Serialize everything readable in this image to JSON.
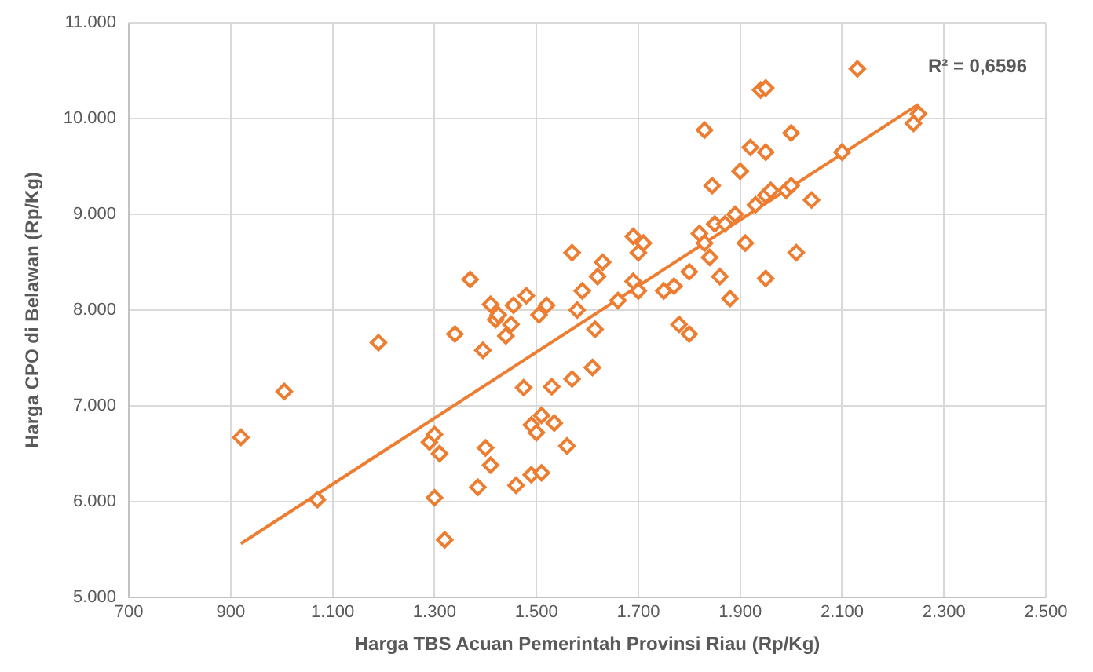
{
  "chart_data": {
    "type": "scatter",
    "xlabel": "Harga TBS Acuan Pemerintah Provinsi Riau (Rp/Kg)",
    "ylabel": "Harga CPO di Belawan (Rp/Kg)",
    "xlim": [
      700,
      2500
    ],
    "xticks": [
      700,
      900,
      {
        "value": 1100,
        "label": "1.100"
      },
      {
        "value": 1300,
        "label": "1.300"
      },
      {
        "value": 1500,
        "label": "1.500"
      },
      {
        "value": 1700,
        "label": "1.700"
      },
      {
        "value": 1900,
        "label": "1.900"
      },
      {
        "value": 2100,
        "label": "2.100"
      },
      {
        "value": 2300,
        "label": "2.300"
      },
      {
        "value": 2500,
        "label": "2.500"
      }
    ],
    "ylim": [
      5000,
      11000
    ],
    "yticks": [
      {
        "value": 5000,
        "label": "5.000"
      },
      {
        "value": 6000,
        "label": "6.000"
      },
      {
        "value": 7000,
        "label": "7.000"
      },
      {
        "value": 8000,
        "label": "8.000"
      },
      {
        "value": 9000,
        "label": "9.000"
      },
      {
        "value": 10000,
        "label": "10.000"
      },
      {
        "value": 11000,
        "label": "11.000"
      }
    ],
    "grid": true,
    "marker": "diamond",
    "annotations": [
      "R² = 0,6596"
    ],
    "series": [
      {
        "color": "#ed7d31",
        "x": [
          920,
          1005,
          1070,
          1190,
          1290,
          1300,
          1310,
          1300,
          1320,
          1340,
          1370,
          1385,
          1395,
          1400,
          1410,
          1410,
          1420,
          1425,
          1440,
          1450,
          1455,
          1460,
          1475,
          1480,
          1490,
          1490,
          1500,
          1505,
          1510,
          1510,
          1520,
          1530,
          1535,
          1560,
          1570,
          1570,
          1580,
          1590,
          1610,
          1615,
          1620,
          1630,
          1660,
          1690,
          1690,
          1700,
          1700,
          1710,
          1750,
          1770,
          1780,
          1800,
          1800,
          1820,
          1830,
          1830,
          1840,
          1845,
          1850,
          1860,
          1870,
          1880,
          1890,
          1900,
          1910,
          1920,
          1930,
          1940,
          1950,
          1950,
          1950,
          1950,
          1960,
          1990,
          2000,
          2000,
          2010,
          2040,
          2100,
          2130,
          2240,
          2250
        ],
        "values": [
          6670,
          7150,
          6020,
          7660,
          6620,
          6700,
          6500,
          6040,
          5600,
          7750,
          8320,
          6150,
          7580,
          6560,
          6380,
          8060,
          7900,
          7950,
          7730,
          7850,
          8050,
          6170,
          7190,
          8150,
          6280,
          6800,
          6720,
          7950,
          6900,
          6300,
          8050,
          7200,
          6820,
          6580,
          7280,
          8600,
          8000,
          8200,
          7400,
          7800,
          8350,
          8500,
          8100,
          8770,
          8300,
          8200,
          8600,
          8700,
          8200,
          8250,
          7850,
          7750,
          8400,
          8800,
          9880,
          8700,
          8550,
          9300,
          8900,
          8350,
          8900,
          8120,
          9000,
          9450,
          8700,
          9700,
          9100,
          10300,
          10320,
          9650,
          9200,
          8330,
          9250,
          9250,
          9850,
          9300,
          8600,
          9150,
          9650,
          10520,
          9950,
          10050
        ]
      },
      {
        "type": "line",
        "marker": "none",
        "color": "#ed7d31",
        "x": [
          920,
          2250
        ],
        "values": [
          5560,
          10150
        ]
      }
    ]
  }
}
